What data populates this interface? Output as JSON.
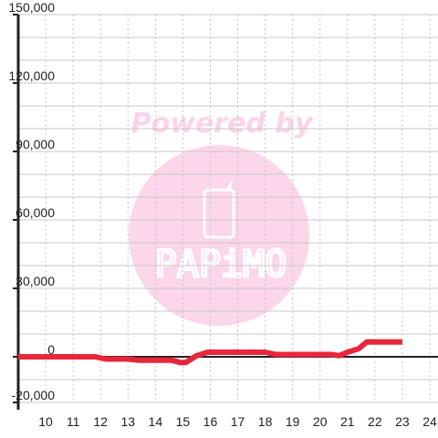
{
  "chart_data": {
    "type": "line",
    "title": "",
    "xlabel": "",
    "ylabel": "",
    "xlim": [
      9,
      24.3
    ],
    "ylim": [
      -20000,
      150000
    ],
    "x_ticks": [
      10,
      11,
      12,
      13,
      14,
      15,
      16,
      17,
      18,
      19,
      20,
      21,
      22,
      23,
      24
    ],
    "x_tick_labels": [
      "10",
      "11",
      "12",
      "13",
      "14",
      "15",
      "16",
      "17",
      "18",
      "19",
      "20",
      "21",
      "22",
      "23",
      "24"
    ],
    "y_ticks": [
      -20000,
      0,
      30000,
      60000,
      90000,
      120000,
      150000
    ],
    "y_tick_labels": [
      "-20,000",
      "0",
      "30,000",
      "60,000",
      "90,000",
      "120,000",
      "150,000"
    ],
    "grid": true,
    "series": [
      {
        "color": "#e8263c",
        "points": [
          [
            9.0,
            0
          ],
          [
            10.0,
            0
          ],
          [
            11.0,
            0
          ],
          [
            11.8,
            0
          ],
          [
            12.2,
            -1000
          ],
          [
            13.0,
            -1000
          ],
          [
            13.4,
            -1500
          ],
          [
            14.0,
            -1500
          ],
          [
            14.6,
            -1500
          ],
          [
            14.9,
            -2500
          ],
          [
            15.1,
            -2500
          ],
          [
            15.5,
            500
          ],
          [
            15.9,
            2000
          ],
          [
            16.5,
            2000
          ],
          [
            17.5,
            2000
          ],
          [
            18.0,
            2000
          ],
          [
            18.4,
            1000
          ],
          [
            19.0,
            1000
          ],
          [
            19.5,
            1000
          ],
          [
            20.0,
            1000
          ],
          [
            20.4,
            1000
          ],
          [
            20.7,
            500
          ],
          [
            21.0,
            2000
          ],
          [
            21.4,
            3500
          ],
          [
            21.7,
            6500
          ],
          [
            22.0,
            6500
          ],
          [
            22.5,
            6500
          ],
          [
            23.0,
            6500
          ]
        ]
      }
    ]
  },
  "watermark": {
    "powered_by": "Powered by",
    "brand": "PAPiMO",
    "color": "#fbd4e9"
  }
}
